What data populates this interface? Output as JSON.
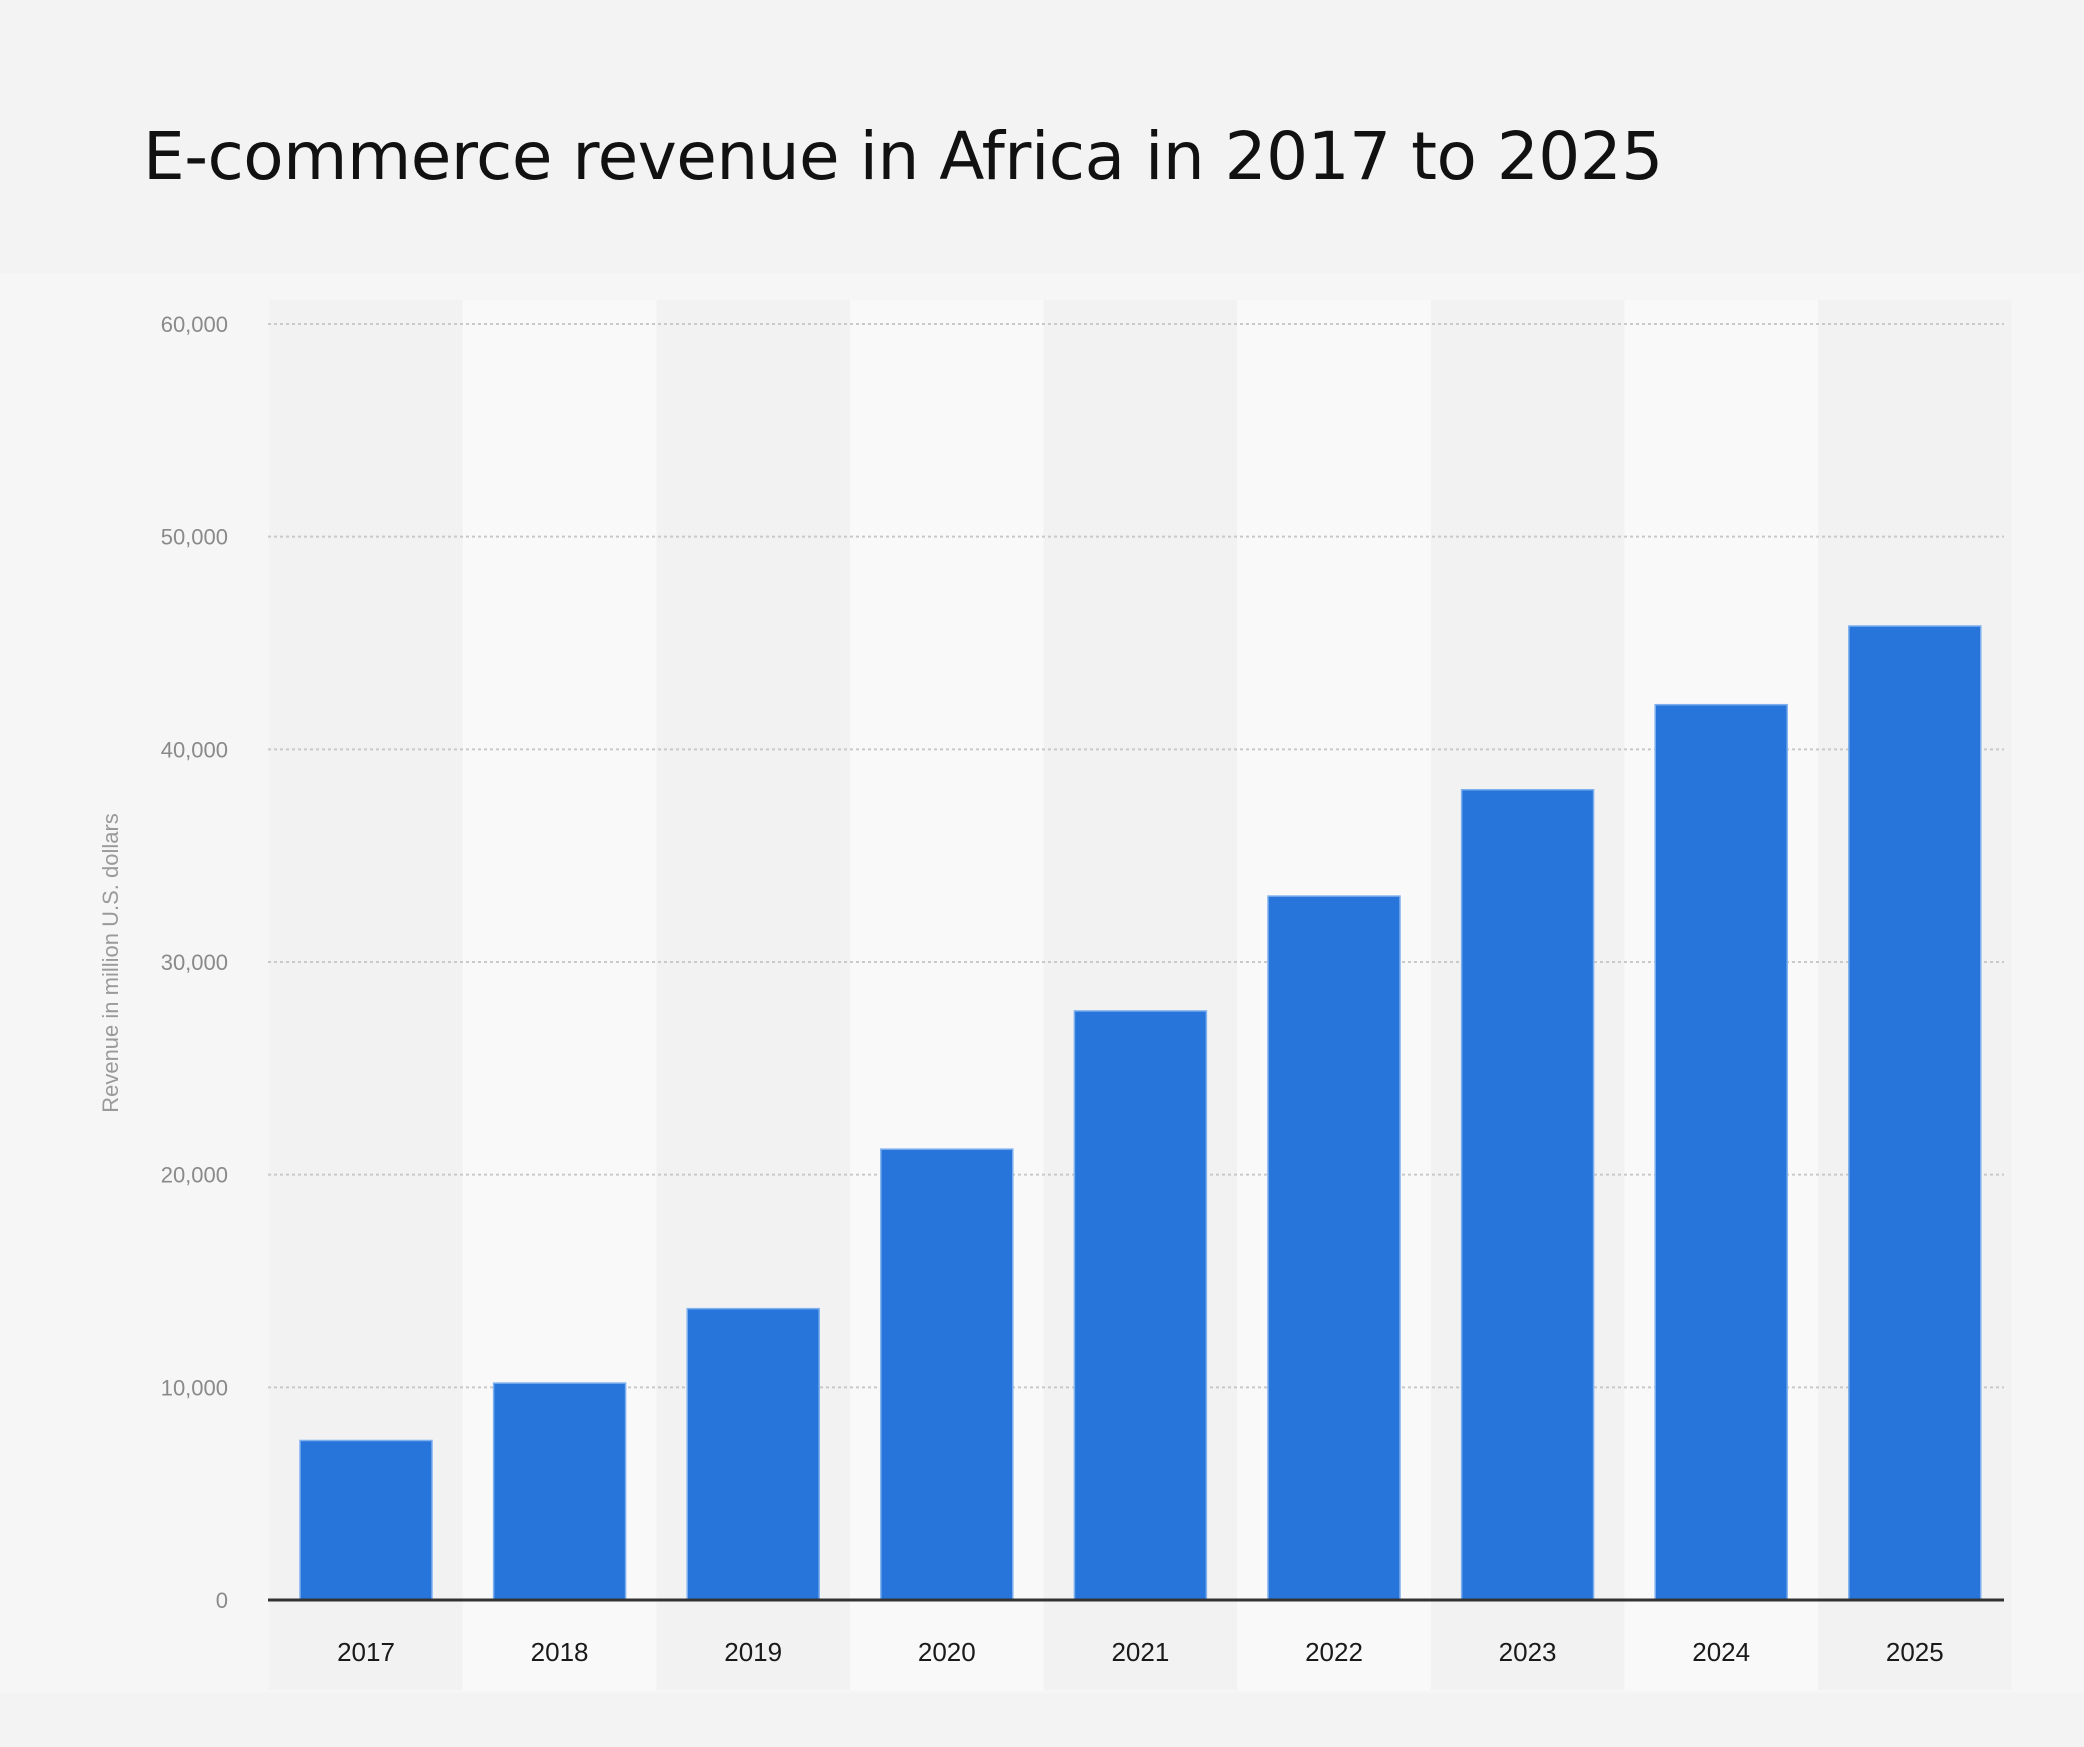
{
  "chart_data": {
    "type": "bar",
    "title": "E-commerce revenue in Africa in 2017 to 2025",
    "xlabel": "",
    "ylabel": "Revenue in million U.S. dollars",
    "categories": [
      "2017",
      "2018",
      "2019",
      "2020",
      "2021",
      "2022",
      "2023",
      "2024",
      "2025"
    ],
    "values": [
      7500,
      10200,
      13700,
      21200,
      27700,
      33100,
      38100,
      42100,
      45800
    ],
    "ylim": [
      0,
      60000
    ],
    "yticks": [
      0,
      10000,
      20000,
      30000,
      40000,
      50000,
      60000
    ],
    "ytick_labels": [
      "0",
      "10,000",
      "20,000",
      "30,000",
      "40,000",
      "50,000",
      "60,000"
    ],
    "grid": true,
    "legend": "none",
    "colors": {
      "bar": "#2775db",
      "bar_edge": "#7fb0ee",
      "gridline": "#c9c9c9",
      "axis": "#333333",
      "plot_bg": "#f6f6f6",
      "band_light": "#f9f9f9",
      "band_dark": "#f2f2f2"
    }
  }
}
